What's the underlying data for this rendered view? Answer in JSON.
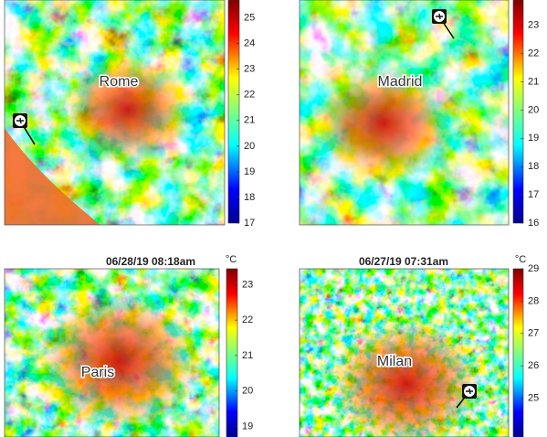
{
  "panels": [
    {
      "city": "Rome",
      "colorbar": {
        "lim": [
          17,
          25.7
        ],
        "ticks": [
          17,
          18,
          19,
          20,
          21,
          22,
          23,
          24,
          25
        ]
      }
    },
    {
      "city": "Madrid",
      "colorbar": {
        "lim": [
          16,
          23.9
        ],
        "ticks": [
          16,
          17,
          18,
          19,
          20,
          21,
          22,
          23
        ]
      }
    },
    {
      "title": "06/28/19 08:18am",
      "unit": "°C",
      "city": "Paris",
      "colorbar": {
        "lim": [
          18.7,
          23.45
        ],
        "ticks": [
          19,
          20,
          21,
          22,
          23
        ]
      }
    },
    {
      "title": "06/27/19 07:31am",
      "unit": "°C",
      "city": "Milan",
      "colorbar": {
        "lim": [
          23.8,
          29
        ],
        "ticks": [
          25,
          26,
          27,
          28,
          29
        ]
      }
    }
  ]
}
